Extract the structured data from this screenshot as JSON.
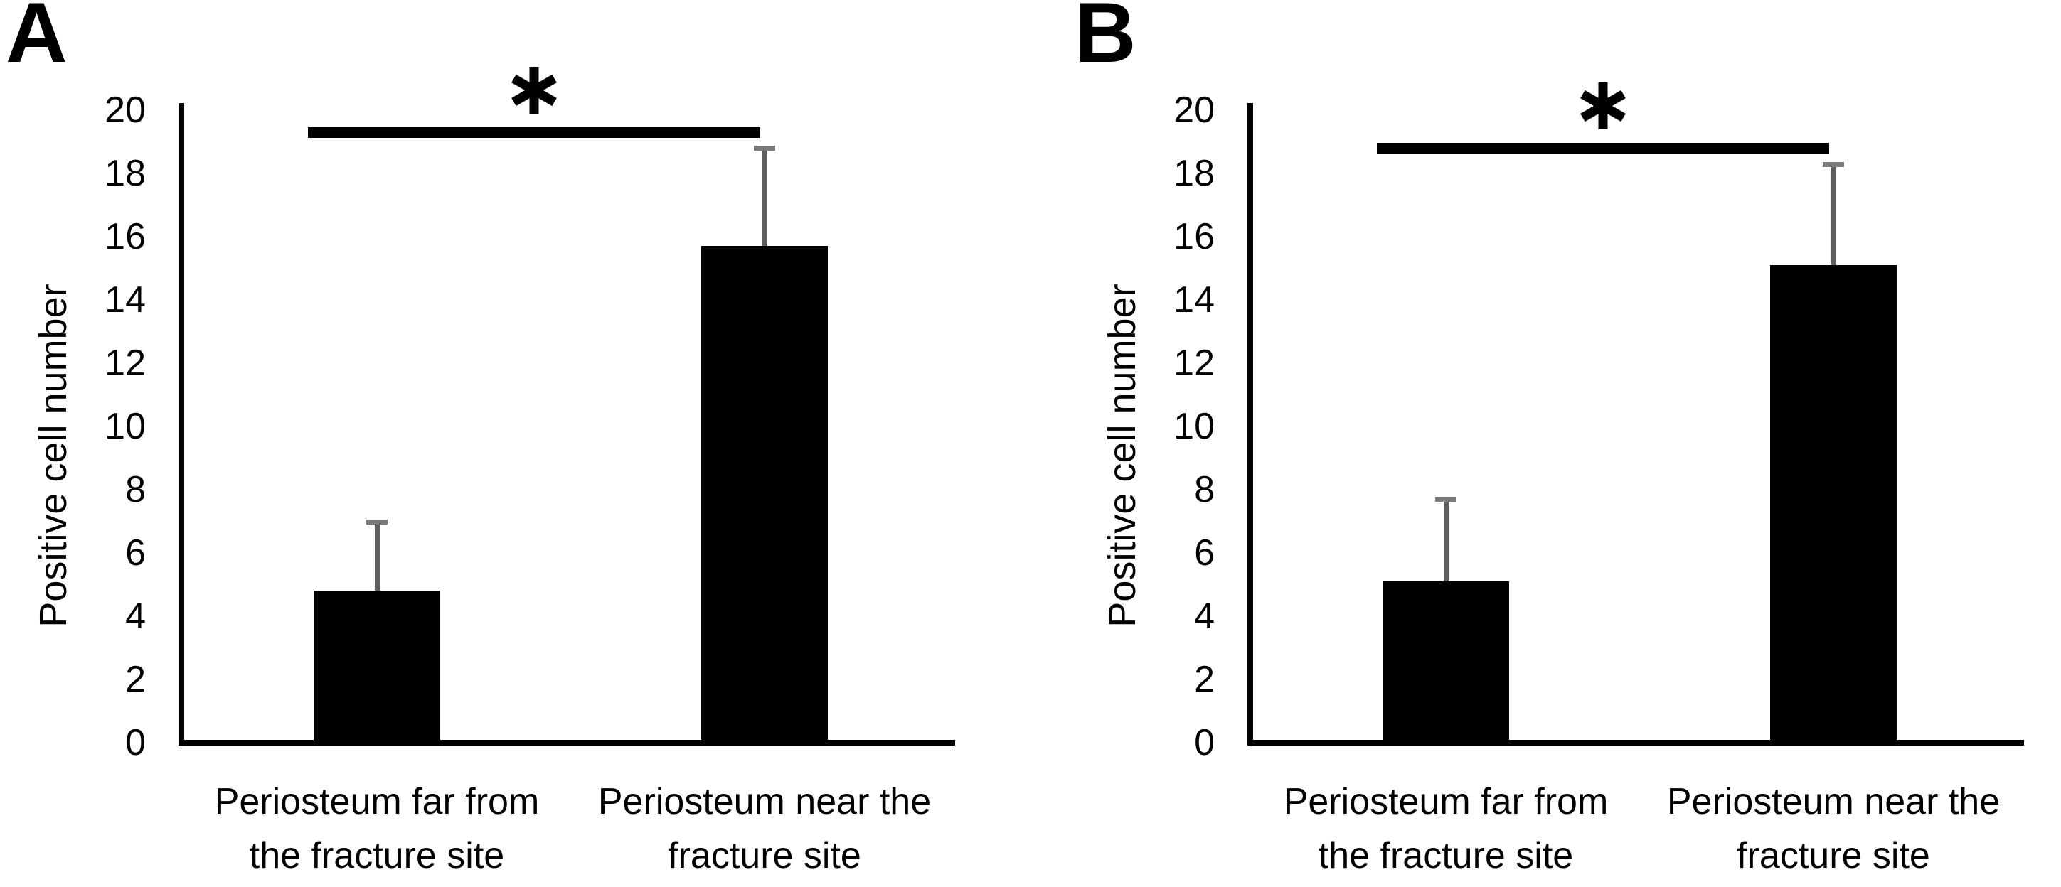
{
  "figure": {
    "background": "#ffffff",
    "colors": {
      "bar": "#000000",
      "error_bar": "#5f5f5f",
      "axis": "#000000",
      "significance_line": "#000000",
      "text": "#000000"
    }
  },
  "chart_data": [
    {
      "type": "bar",
      "panel_label": "A",
      "ylabel": "Positive cell number",
      "xlabel": "",
      "ylim": [
        0,
        20
      ],
      "yticks": [
        0,
        2,
        4,
        6,
        8,
        10,
        12,
        14,
        16,
        18,
        20
      ],
      "grid": false,
      "legend": "none",
      "categories": [
        "Periosteum far from the fracture site",
        "Periosteum near the fracture site"
      ],
      "categories_lines": [
        [
          "Periosteum far from",
          "the fracture site"
        ],
        [
          "Periosteum near the",
          "fracture site"
        ]
      ],
      "values": [
        4.8,
        15.7
      ],
      "error_plus": [
        2.2,
        3.1
      ],
      "bar_color": "#000000",
      "significance": {
        "symbol": "*",
        "between": [
          0,
          1
        ],
        "line_y": 19.3
      }
    },
    {
      "type": "bar",
      "panel_label": "B",
      "ylabel": "Positive cell number",
      "xlabel": "",
      "ylim": [
        0,
        20
      ],
      "yticks": [
        0,
        2,
        4,
        6,
        8,
        10,
        12,
        14,
        16,
        18,
        20
      ],
      "grid": false,
      "legend": "none",
      "categories": [
        "Periosteum far from the fracture site",
        "Periosteum near the fracture site"
      ],
      "categories_lines": [
        [
          "Periosteum far from",
          "the fracture site"
        ],
        [
          "Periosteum near the",
          "fracture site"
        ]
      ],
      "values": [
        5.1,
        15.1
      ],
      "error_plus": [
        2.6,
        3.2
      ],
      "bar_color": "#000000",
      "significance": {
        "symbol": "*",
        "between": [
          0,
          1
        ],
        "line_y": 18.8
      }
    }
  ]
}
